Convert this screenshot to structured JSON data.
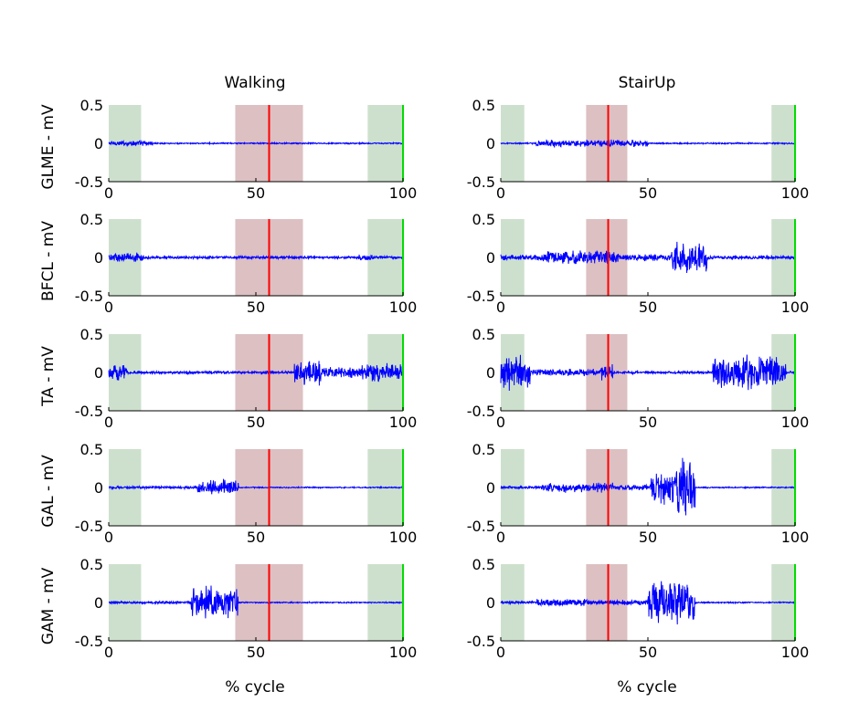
{
  "chart_data": {
    "type": "line",
    "layout_grid": "5 rows x 2 columns",
    "columns": [
      {
        "title": "Walking",
        "xlabel": "% cycle",
        "xlim": [
          0,
          100
        ],
        "xticks": [
          0,
          50,
          100
        ],
        "stance_start": 0,
        "stance_end": 11,
        "swing_start": 43,
        "swing_end": 66,
        "late_start": 88,
        "late_end": 100,
        "toe_off": 54.5
      },
      {
        "title": "StairUp",
        "xlabel": "% cycle",
        "xlim": [
          0,
          100
        ],
        "xticks": [
          0,
          50,
          100
        ],
        "stance_start": 0,
        "stance_end": 8,
        "swing_start": 29,
        "swing_end": 43,
        "late_start": 92,
        "late_end": 100,
        "toe_off": 36.5
      }
    ],
    "rows": [
      {
        "ylabel": "GLME - mV",
        "ylim": [
          -0.5,
          0.5
        ],
        "yticks": [
          "0.5",
          "0",
          "-0.5"
        ]
      },
      {
        "ylabel": "BFCL - mV",
        "ylim": [
          -0.5,
          0.5
        ],
        "yticks": [
          "0.5",
          "0",
          "-0.5"
        ]
      },
      {
        "ylabel": "TA - mV",
        "ylim": [
          -0.5,
          0.5
        ],
        "yticks": [
          "0.5",
          "0",
          "-0.5"
        ]
      },
      {
        "ylabel": "GAL - mV",
        "ylim": [
          -0.5,
          0.5
        ],
        "yticks": [
          "0.5",
          "0",
          "-0.5"
        ]
      },
      {
        "ylabel": "GAM - mV",
        "ylim": [
          -0.5,
          0.5
        ],
        "yticks": [
          "0.5",
          "0",
          "-0.5"
        ]
      }
    ],
    "xtick_labels": [
      "0",
      "50",
      "100"
    ],
    "emg_envelopes": [
      [
        {
          "rows": 0,
          "col": 0,
          "bursts": [
            [
              0,
              15,
              0.04
            ],
            [
              15,
              100,
              0.01
            ]
          ]
        },
        {
          "rows": 1,
          "col": 0,
          "bursts": [
            [
              0,
              12,
              0.07
            ],
            [
              12,
              85,
              0.02
            ],
            [
              82,
              90,
              0.05
            ],
            [
              90,
              100,
              0.02
            ]
          ]
        },
        {
          "rows": 2,
          "col": 0,
          "bursts": [
            [
              0,
              6,
              0.12
            ],
            [
              6,
              63,
              0.02
            ],
            [
              63,
              72,
              0.18
            ],
            [
              72,
              86,
              0.08
            ],
            [
              86,
              100,
              0.14
            ]
          ]
        },
        {
          "rows": 3,
          "col": 0,
          "bursts": [
            [
              0,
              30,
              0.02
            ],
            [
              30,
              44,
              0.12
            ],
            [
              44,
              100,
              0.01
            ]
          ]
        },
        {
          "rows": 4,
          "col": 0,
          "bursts": [
            [
              0,
              28,
              0.02
            ],
            [
              28,
              44,
              0.25
            ],
            [
              44,
              100,
              0.01
            ]
          ]
        }
      ],
      [
        {
          "rows": 0,
          "col": 1,
          "bursts": [
            [
              0,
              12,
              0.01
            ],
            [
              12,
              50,
              0.05
            ],
            [
              50,
              100,
              0.01
            ]
          ]
        },
        {
          "rows": 1,
          "col": 1,
          "bursts": [
            [
              0,
              14,
              0.04
            ],
            [
              14,
              40,
              0.1
            ],
            [
              40,
              58,
              0.05
            ],
            [
              58,
              70,
              0.22
            ],
            [
              70,
              100,
              0.03
            ]
          ]
        },
        {
          "rows": 2,
          "col": 1,
          "bursts": [
            [
              0,
              10,
              0.25
            ],
            [
              10,
              34,
              0.05
            ],
            [
              34,
              38,
              0.12
            ],
            [
              38,
              72,
              0.02
            ],
            [
              72,
              97,
              0.25
            ],
            [
              97,
              100,
              0.02
            ]
          ]
        },
        {
          "rows": 3,
          "col": 1,
          "bursts": [
            [
              0,
              14,
              0.02
            ],
            [
              14,
              38,
              0.07
            ],
            [
              38,
              51,
              0.04
            ],
            [
              51,
              60,
              0.28
            ],
            [
              60,
              66,
              0.45
            ],
            [
              66,
              100,
              0.01
            ]
          ]
        },
        {
          "rows": 4,
          "col": 1,
          "bursts": [
            [
              0,
              12,
              0.02
            ],
            [
              12,
              30,
              0.05
            ],
            [
              30,
              50,
              0.04
            ],
            [
              50,
              66,
              0.32
            ],
            [
              66,
              100,
              0.01
            ]
          ]
        }
      ]
    ],
    "colors": {
      "signal": "#0000ff",
      "toe_off_line": "#ff0000",
      "swing_band": "#dcc0c2",
      "stance_band": "#cde0cd",
      "end_marker": "#00dd00"
    }
  }
}
